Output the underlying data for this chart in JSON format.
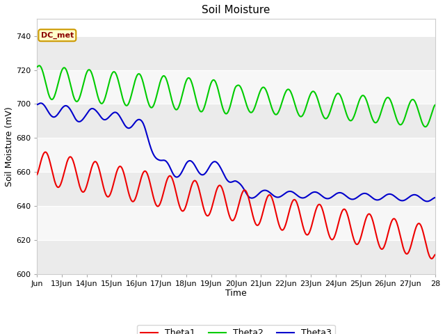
{
  "title": "Soil Moisture",
  "xlabel": "Time",
  "ylabel": "Soil Moisture (mV)",
  "ylim": [
    600,
    750
  ],
  "yticks": [
    600,
    620,
    640,
    660,
    680,
    700,
    720,
    740
  ],
  "x_labels": [
    "Jun",
    "13Jun",
    "14Jun",
    "15Jun",
    "16Jun",
    "17Jun",
    "18Jun",
    "19Jun",
    "20Jun",
    "21Jun",
    "22Jun",
    "23Jun",
    "24Jun",
    "25Jun",
    "26Jun",
    "27Jun",
    "28"
  ],
  "fig_bg": "#ffffff",
  "plot_bg": "#ffffff",
  "band_colors": [
    "#ebebeb",
    "#f7f7f7"
  ],
  "annotation_text": "DC_met",
  "annotation_bg": "#ffffcc",
  "annotation_border": "#cc9900",
  "theta1_color": "#ee0000",
  "theta2_color": "#00cc00",
  "theta3_color": "#0000cc",
  "legend_labels": [
    "Theta1",
    "Theta2",
    "Theta3"
  ],
  "linewidth": 1.5,
  "title_fontsize": 11,
  "axis_fontsize": 9,
  "tick_fontsize": 8
}
